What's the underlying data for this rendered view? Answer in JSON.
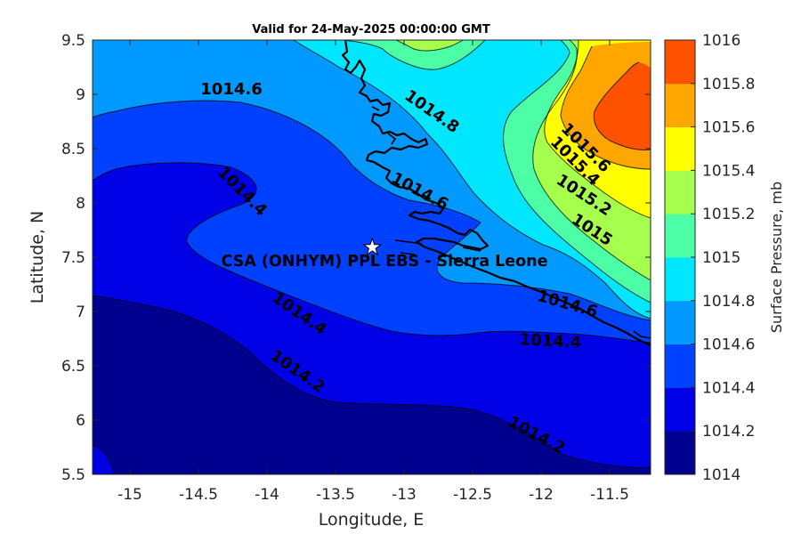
{
  "title": "Valid for 24-May-2025 00:00:00 GMT",
  "x_axis": {
    "label": "Longitude, E",
    "ticks": [
      "-15",
      "-14.5",
      "-14",
      "-13.5",
      "-13",
      "-12.5",
      "-12",
      "-11.5"
    ]
  },
  "y_axis": {
    "label": "Latitude, N",
    "ticks": [
      "9.5",
      "9",
      "8.5",
      "8",
      "7.5",
      "7",
      "6.5",
      "6",
      "5.5"
    ]
  },
  "colorbar": {
    "label": "Surface Pressure, mb",
    "levels": [
      {
        "label": "1014",
        "color": "#00008F"
      },
      {
        "label": "1014.2",
        "color": "#0000E6"
      },
      {
        "label": "1014.4",
        "color": "#0040FF"
      },
      {
        "label": "1014.6",
        "color": "#0099FF"
      },
      {
        "label": "1014.8",
        "color": "#00E6FF"
      },
      {
        "label": "1015",
        "color": "#4CFFA6"
      },
      {
        "label": "1015.2",
        "color": "#A6FF4C"
      },
      {
        "label": "1015.4",
        "color": "#FFFF00"
      },
      {
        "label": "1015.6",
        "color": "#FFA600"
      },
      {
        "label": "1015.8",
        "color": "#FF5200"
      },
      {
        "label": "1016",
        "color": "#FF0000"
      }
    ]
  },
  "site": {
    "name": "CSA (ONHYM) PPL EBS  - Sierra Leone",
    "marker": "star-icon",
    "lon": -13.23,
    "lat": 7.59
  },
  "contour_labels": [
    {
      "text": "1014.6"
    },
    {
      "text": "1014.8"
    },
    {
      "text": "1014.4"
    },
    {
      "text": "1014.6"
    },
    {
      "text": "1015.6"
    },
    {
      "text": "1015.4"
    },
    {
      "text": "1015.2"
    },
    {
      "text": "1015"
    },
    {
      "text": "1014.6"
    },
    {
      "text": "1014.4"
    },
    {
      "text": "1014.4"
    },
    {
      "text": "1014.2"
    },
    {
      "text": "1014.2"
    }
  ]
}
